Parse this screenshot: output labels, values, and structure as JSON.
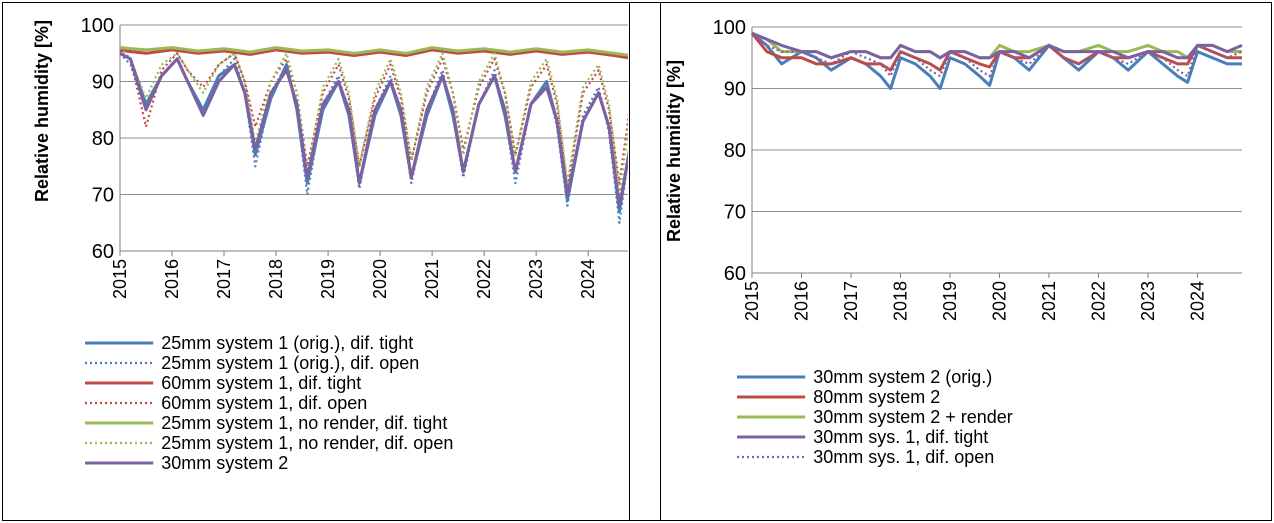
{
  "chart_data": [
    {
      "type": "line",
      "title": "",
      "xlabel": "",
      "ylabel": "Relative humidity [%]",
      "ylim": [
        60,
        100
      ],
      "yticks": [
        60,
        70,
        80,
        90,
        100
      ],
      "xticks": [
        "2015",
        "2016",
        "2017",
        "2018",
        "2019",
        "2020",
        "2021",
        "2022",
        "2023",
        "2024"
      ],
      "xlim": [
        2015,
        2024.9
      ],
      "grid": "horizontal",
      "legend": "bottom",
      "series": [
        {
          "name": "25mm system 1 (orig.), dif. tight",
          "color": "#4a7ebb",
          "dash": "solid",
          "x": [
            2015,
            2015.2,
            2015.5,
            2015.8,
            2016.1,
            2016.3,
            2016.6,
            2016.9,
            2017.2,
            2017.4,
            2017.6,
            2017.9,
            2018.2,
            2018.4,
            2018.6,
            2018.9,
            2019.2,
            2019.4,
            2019.6,
            2019.9,
            2020.2,
            2020.4,
            2020.6,
            2020.9,
            2021.2,
            2021.4,
            2021.6,
            2021.9,
            2022.2,
            2022.4,
            2022.6,
            2022.9,
            2023.2,
            2023.4,
            2023.6,
            2023.9,
            2024.2,
            2024.4,
            2024.6,
            2024.9
          ],
          "y": [
            95,
            94,
            86,
            91,
            94,
            90,
            85,
            91,
            93,
            88,
            77,
            87,
            93,
            85,
            72,
            85,
            90,
            84,
            72,
            84,
            90,
            84,
            73,
            84,
            91,
            84,
            74,
            86,
            91,
            84,
            74,
            86,
            90,
            83,
            69,
            83,
            88,
            82,
            67,
            84
          ]
        },
        {
          "name": "25mm system 1 (orig.), dif. open",
          "color": "#4a7ebb",
          "dash": "dotted",
          "x": [
            2015,
            2015.2,
            2015.5,
            2015.8,
            2016.1,
            2016.3,
            2016.6,
            2016.9,
            2017.2,
            2017.4,
            2017.6,
            2017.9,
            2018.2,
            2018.4,
            2018.6,
            2018.9,
            2019.2,
            2019.4,
            2019.6,
            2019.9,
            2020.2,
            2020.4,
            2020.6,
            2020.9,
            2021.2,
            2021.4,
            2021.6,
            2021.9,
            2022.2,
            2022.4,
            2022.6,
            2022.9,
            2023.2,
            2023.4,
            2023.6,
            2023.9,
            2024.2,
            2024.4,
            2024.6,
            2024.9
          ],
          "y": [
            95,
            93,
            85,
            91,
            94,
            90,
            85,
            91,
            94,
            88,
            75,
            88,
            93,
            85,
            70,
            86,
            91,
            84,
            71,
            85,
            91,
            84,
            72,
            85,
            92,
            84,
            73,
            86,
            92,
            84,
            72,
            86,
            90,
            82,
            68,
            84,
            89,
            81,
            65,
            85
          ]
        },
        {
          "name": "60mm system 1, dif. tight",
          "color": "#be4b48",
          "dash": "solid",
          "x": [
            2015,
            2015.5,
            2016,
            2016.5,
            2017,
            2017.5,
            2018,
            2018.5,
            2019,
            2019.5,
            2020,
            2020.5,
            2021,
            2021.5,
            2022,
            2022.5,
            2023,
            2023.5,
            2024,
            2024.5,
            2024.9
          ],
          "y": [
            95.5,
            95,
            95.6,
            95,
            95.4,
            94.8,
            95.6,
            95,
            95.2,
            94.6,
            95.2,
            94.6,
            95.6,
            95,
            95.4,
            94.8,
            95.4,
            94.8,
            95.2,
            94.6,
            94
          ]
        },
        {
          "name": "60mm system 1, dif. open",
          "color": "#be4b48",
          "dash": "dotted",
          "x": [
            2015,
            2015.2,
            2015.5,
            2015.8,
            2016.1,
            2016.3,
            2016.6,
            2016.9,
            2017.2,
            2017.4,
            2017.6,
            2017.9,
            2018.2,
            2018.4,
            2018.6,
            2018.9,
            2019.2,
            2019.4,
            2019.6,
            2019.9,
            2020.2,
            2020.4,
            2020.6,
            2020.9,
            2021.2,
            2021.4,
            2021.6,
            2021.9,
            2022.2,
            2022.4,
            2022.6,
            2022.9,
            2023.2,
            2023.4,
            2023.6,
            2023.9,
            2024.2,
            2024.4,
            2024.6,
            2024.9
          ],
          "y": [
            96,
            94,
            82,
            92,
            95,
            92,
            89,
            93,
            95,
            90,
            82,
            90,
            94,
            88,
            75,
            88,
            93,
            87,
            75,
            87,
            93,
            87,
            76,
            88,
            94,
            88,
            78,
            89,
            94,
            88,
            77,
            89,
            93,
            86,
            71,
            88,
            92,
            85,
            72,
            92
          ]
        },
        {
          "name": "25mm system 1, no render, dif. tight",
          "color": "#98b954",
          "dash": "solid",
          "x": [
            2015,
            2015.5,
            2016,
            2016.5,
            2017,
            2017.5,
            2018,
            2018.5,
            2019,
            2019.5,
            2020,
            2020.5,
            2021,
            2021.5,
            2022,
            2022.5,
            2023,
            2023.5,
            2024,
            2024.5,
            2024.9
          ],
          "y": [
            96,
            95.6,
            96,
            95.4,
            95.8,
            95.2,
            96,
            95.4,
            95.6,
            95,
            95.6,
            95,
            96,
            95.4,
            95.8,
            95.2,
            95.8,
            95.2,
            95.6,
            95,
            94.5
          ]
        },
        {
          "name": "25mm system 1, no render, dif. open",
          "color": "#98b954",
          "dash": "dotted",
          "x": [
            2015,
            2015.2,
            2015.5,
            2015.8,
            2016.1,
            2016.3,
            2016.6,
            2016.9,
            2017.2,
            2017.4,
            2017.6,
            2017.9,
            2018.2,
            2018.4,
            2018.6,
            2018.9,
            2019.2,
            2019.4,
            2019.6,
            2019.9,
            2020.2,
            2020.4,
            2020.6,
            2020.9,
            2021.2,
            2021.4,
            2021.6,
            2021.9,
            2022.2,
            2022.4,
            2022.6,
            2022.9,
            2023.2,
            2023.4,
            2023.6,
            2023.9,
            2024.2,
            2024.4,
            2024.6,
            2024.9
          ],
          "y": [
            96,
            94,
            87,
            93,
            95,
            92,
            88,
            93,
            95,
            90,
            79,
            90,
            95,
            88,
            74,
            89,
            94,
            88,
            75,
            88,
            94,
            88,
            76,
            89,
            95,
            88,
            77,
            90,
            95,
            88,
            77,
            90,
            94,
            87,
            72,
            89,
            93,
            86,
            70,
            90
          ]
        },
        {
          "name": "30mm system 2",
          "color": "#7d60a0",
          "dash": "solid",
          "x": [
            2015,
            2015.2,
            2015.5,
            2015.8,
            2016.1,
            2016.3,
            2016.6,
            2016.9,
            2017.2,
            2017.4,
            2017.6,
            2017.9,
            2018.2,
            2018.4,
            2018.6,
            2018.9,
            2019.2,
            2019.4,
            2019.6,
            2019.9,
            2020.2,
            2020.4,
            2020.6,
            2020.9,
            2021.2,
            2021.4,
            2021.6,
            2021.9,
            2022.2,
            2022.4,
            2022.6,
            2022.9,
            2023.2,
            2023.4,
            2023.6,
            2023.9,
            2024.2,
            2024.4,
            2024.6,
            2024.9
          ],
          "y": [
            95,
            94,
            85,
            91,
            94,
            90,
            84,
            90,
            93,
            88,
            78,
            88,
            92,
            86,
            73,
            86,
            90,
            85,
            72,
            85,
            90,
            85,
            73,
            85,
            91,
            85,
            74,
            86,
            91,
            85,
            74,
            86,
            89,
            83,
            70,
            83,
            88,
            82,
            68,
            83
          ]
        }
      ]
    },
    {
      "type": "line",
      "title": "",
      "xlabel": "",
      "ylabel": "Relative humidity [%]",
      "ylim": [
        60,
        100
      ],
      "yticks": [
        60,
        70,
        80,
        90,
        100
      ],
      "xticks": [
        "2015",
        "2016",
        "2017",
        "2018",
        "2019",
        "2020",
        "2021",
        "2022",
        "2023",
        "2024"
      ],
      "xlim": [
        2015,
        2024.9
      ],
      "grid": "horizontal",
      "legend": "bottom",
      "series": [
        {
          "name": "30mm system 2 (orig.)",
          "color": "#4a7ebb",
          "dash": "solid",
          "x": [
            2015,
            2015.3,
            2015.6,
            2016,
            2016.3,
            2016.6,
            2017,
            2017.3,
            2017.6,
            2017.8,
            2018,
            2018.3,
            2018.6,
            2018.8,
            2019,
            2019.3,
            2019.6,
            2019.8,
            2020,
            2020.3,
            2020.6,
            2021,
            2021.3,
            2021.6,
            2022,
            2022.3,
            2022.6,
            2023,
            2023.3,
            2023.6,
            2023.8,
            2024,
            2024.3,
            2024.6,
            2024.9
          ],
          "y": [
            99,
            97,
            94,
            96,
            95,
            93,
            95,
            94,
            92,
            90,
            95,
            94,
            92,
            90,
            95,
            94,
            92,
            90.5,
            96,
            95,
            93,
            97,
            95,
            93,
            96,
            95,
            93,
            96,
            94,
            92,
            91,
            96,
            95,
            94,
            94
          ]
        },
        {
          "name": "80mm system 2",
          "color": "#be4b48",
          "dash": "solid",
          "x": [
            2015,
            2015.3,
            2015.6,
            2016,
            2016.3,
            2016.6,
            2017,
            2017.3,
            2017.6,
            2017.8,
            2018,
            2018.3,
            2018.6,
            2018.8,
            2019,
            2019.3,
            2019.6,
            2019.8,
            2020,
            2020.3,
            2020.6,
            2021,
            2021.3,
            2021.6,
            2022,
            2022.3,
            2022.6,
            2023,
            2023.3,
            2023.6,
            2023.8,
            2024,
            2024.3,
            2024.6,
            2024.9
          ],
          "y": [
            99,
            96,
            95,
            95,
            94,
            94,
            95,
            94,
            94,
            93,
            96,
            95,
            94,
            93,
            96,
            95,
            94,
            93.5,
            96,
            95,
            95,
            97,
            95,
            94,
            96,
            95,
            95,
            96,
            95,
            94,
            94,
            97,
            96,
            95,
            95
          ]
        },
        {
          "name": "30mm system 2 + render",
          "color": "#98b954",
          "dash": "solid",
          "x": [
            2015,
            2015.3,
            2015.6,
            2016,
            2016.3,
            2016.6,
            2017,
            2017.3,
            2017.6,
            2017.8,
            2018,
            2018.3,
            2018.6,
            2018.8,
            2019,
            2019.3,
            2019.6,
            2019.8,
            2020,
            2020.3,
            2020.6,
            2021,
            2021.3,
            2021.6,
            2022,
            2022.3,
            2022.6,
            2023,
            2023.3,
            2023.6,
            2023.8,
            2024,
            2024.3,
            2024.6,
            2024.9
          ],
          "y": [
            99,
            98,
            96,
            96,
            96,
            95,
            96,
            96,
            95,
            95,
            97,
            96,
            96,
            95,
            96,
            96,
            95,
            95,
            97,
            96,
            96,
            97,
            96,
            96,
            97,
            96,
            96,
            97,
            96,
            96,
            95,
            97,
            97,
            96,
            96
          ]
        },
        {
          "name": "30mm sys. 1, dif. tight",
          "color": "#7d60a0",
          "dash": "solid",
          "x": [
            2015,
            2015.3,
            2015.6,
            2016,
            2016.3,
            2016.6,
            2017,
            2017.3,
            2017.6,
            2017.8,
            2018,
            2018.3,
            2018.6,
            2018.8,
            2019,
            2019.3,
            2019.6,
            2019.8,
            2020,
            2020.3,
            2020.6,
            2021,
            2021.3,
            2021.6,
            2022,
            2022.3,
            2022.6,
            2023,
            2023.3,
            2023.6,
            2023.8,
            2024,
            2024.3,
            2024.6,
            2024.9
          ],
          "y": [
            99,
            98,
            97,
            96,
            96,
            95,
            96,
            96,
            95,
            95,
            97,
            96,
            96,
            95,
            96,
            96,
            95,
            95,
            96,
            96,
            95,
            97,
            96,
            96,
            96,
            96,
            95,
            96,
            96,
            95,
            95,
            97,
            97,
            96,
            97
          ]
        },
        {
          "name": "30mm sys. 1, dif. open",
          "color": "#7d60a0",
          "dash": "dotted",
          "x": [
            2015,
            2015.3,
            2015.6,
            2016,
            2016.3,
            2016.6,
            2017,
            2017.3,
            2017.6,
            2017.8,
            2018,
            2018.3,
            2018.6,
            2018.8,
            2019,
            2019.3,
            2019.6,
            2019.8,
            2020,
            2020.3,
            2020.6,
            2021,
            2021.3,
            2021.6,
            2022,
            2022.3,
            2022.6,
            2023,
            2023.3,
            2023.6,
            2023.8,
            2024,
            2024.3,
            2024.6,
            2024.9
          ],
          "y": [
            99,
            97,
            96,
            96,
            95,
            94,
            96,
            95,
            94,
            92,
            96,
            95,
            93,
            92,
            96,
            95,
            93,
            92,
            96,
            95,
            94,
            97,
            95,
            94,
            96,
            95,
            94,
            96,
            95,
            93,
            92,
            97,
            96,
            95,
            96
          ]
        }
      ]
    }
  ]
}
